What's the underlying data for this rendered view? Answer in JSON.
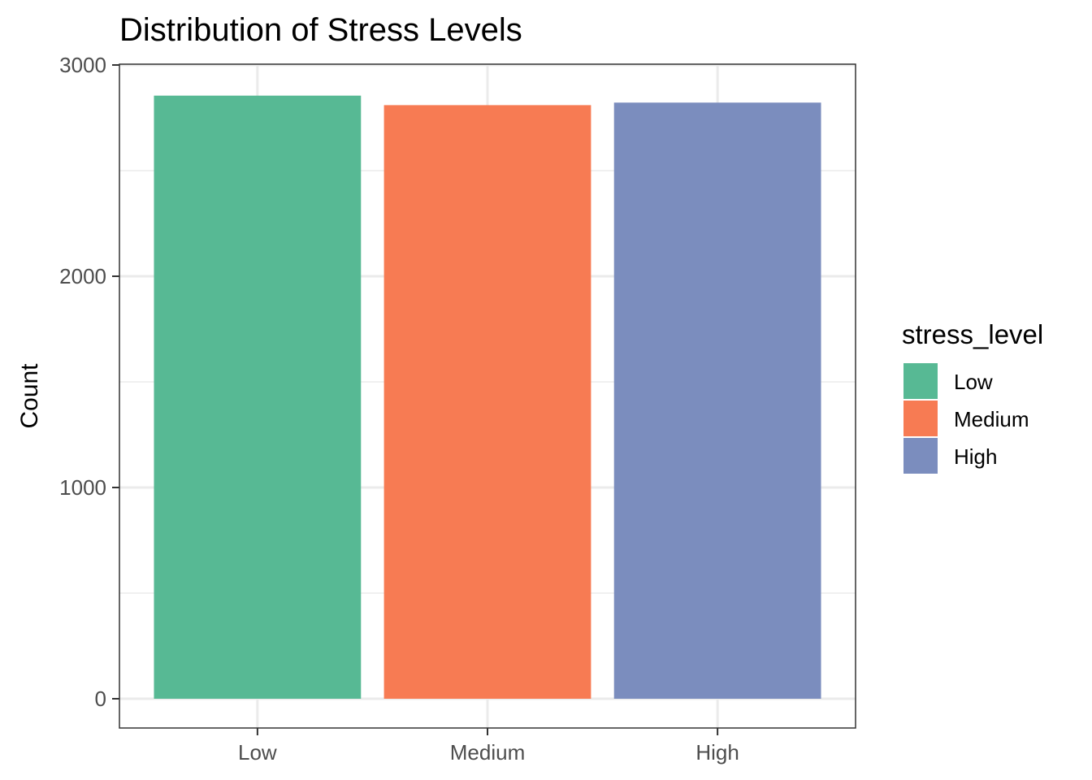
{
  "chart_data": {
    "type": "bar",
    "title": "Distribution of Stress Levels",
    "xlabel": "",
    "ylabel": "Count",
    "categories": [
      "Low",
      "Medium",
      "High"
    ],
    "values": [
      2855,
      2810,
      2822
    ],
    "colors": [
      "#57B994",
      "#F77B53",
      "#7B8DBE"
    ],
    "ylim": [
      0,
      3000
    ],
    "yticks": [
      "0",
      "1000",
      "2000",
      "3000"
    ],
    "ytick_values": [
      0,
      1000,
      2000,
      3000
    ],
    "grid": true,
    "legend": {
      "title": "stress_level",
      "position": "right",
      "items": [
        "Low",
        "Medium",
        "High"
      ]
    }
  }
}
